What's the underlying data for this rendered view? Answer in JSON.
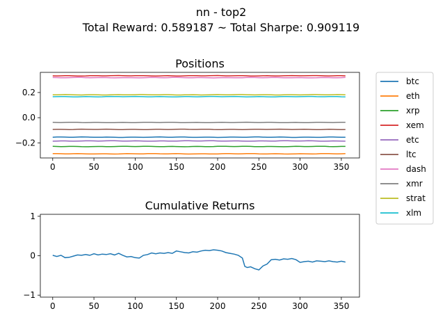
{
  "figure": {
    "title_line1": "nn - top2",
    "title_line2": "Total Reward: 0.589187 ~ Total Sharpe: 0.909119"
  },
  "chart_data": [
    {
      "type": "line",
      "title": "Positions",
      "xlabel": "",
      "ylabel": "",
      "xlim": [
        -15,
        372
      ],
      "ylim": [
        -0.32,
        0.36
      ],
      "xticks": [
        0,
        50,
        100,
        150,
        200,
        250,
        300,
        350
      ],
      "yticks": [
        -0.2,
        0.0,
        0.2
      ],
      "ytick_labels": [
        "−0.2",
        "0.0",
        "0.2"
      ],
      "x_range": [
        0,
        355
      ],
      "legend_position": "outside-right",
      "grid": false,
      "series": [
        {
          "name": "btc",
          "color": "#1f77b4",
          "value": -0.155
        },
        {
          "name": "eth",
          "color": "#ff7f0e",
          "value": -0.287
        },
        {
          "name": "xrp",
          "color": "#2ca02c",
          "value": -0.229
        },
        {
          "name": "xem",
          "color": "#d62728",
          "value": 0.333
        },
        {
          "name": "etc",
          "color": "#9467bd",
          "value": -0.185
        },
        {
          "name": "ltc",
          "color": "#8c564b",
          "value": -0.093
        },
        {
          "name": "dash",
          "color": "#e377c2",
          "value": 0.318
        },
        {
          "name": "xmr",
          "color": "#7f7f7f",
          "value": -0.038
        },
        {
          "name": "strat",
          "color": "#bcbd22",
          "value": 0.182
        },
        {
          "name": "xlm",
          "color": "#17becf",
          "value": 0.167
        }
      ]
    },
    {
      "type": "line",
      "title": "Cumulative Returns",
      "xlabel": "",
      "ylabel": "",
      "xlim": [
        -15,
        372
      ],
      "ylim": [
        -1.05,
        1.05
      ],
      "xticks": [
        0,
        50,
        100,
        150,
        200,
        250,
        300,
        350
      ],
      "yticks": [
        -1,
        0,
        1
      ],
      "ytick_labels": [
        "−1",
        "0",
        "1"
      ],
      "grid": false,
      "series": [
        {
          "color": "#1f77b4",
          "x": [
            0,
            5,
            10,
            15,
            20,
            25,
            30,
            35,
            40,
            45,
            50,
            55,
            60,
            65,
            70,
            75,
            80,
            85,
            90,
            95,
            100,
            105,
            110,
            115,
            120,
            125,
            130,
            135,
            140,
            145,
            150,
            155,
            160,
            165,
            170,
            175,
            180,
            185,
            190,
            195,
            200,
            205,
            210,
            215,
            220,
            225,
            230,
            233,
            236,
            240,
            245,
            250,
            255,
            260,
            265,
            270,
            275,
            280,
            285,
            290,
            295,
            300,
            305,
            310,
            315,
            320,
            325,
            330,
            335,
            340,
            345,
            350,
            355
          ],
          "y": [
            0.01,
            -0.02,
            0.01,
            -0.05,
            -0.04,
            -0.01,
            0.02,
            0.01,
            0.03,
            0.01,
            0.05,
            0.02,
            0.04,
            0.03,
            0.05,
            0.02,
            0.06,
            0.01,
            -0.03,
            -0.02,
            -0.05,
            -0.06,
            0.01,
            0.03,
            0.07,
            0.05,
            0.07,
            0.06,
            0.08,
            0.06,
            0.12,
            0.1,
            0.08,
            0.07,
            0.1,
            0.09,
            0.12,
            0.14,
            0.13,
            0.15,
            0.14,
            0.12,
            0.08,
            0.06,
            0.04,
            0.01,
            -0.06,
            -0.27,
            -0.3,
            -0.28,
            -0.33,
            -0.36,
            -0.26,
            -0.21,
            -0.1,
            -0.09,
            -0.11,
            -0.08,
            -0.09,
            -0.07,
            -0.1,
            -0.17,
            -0.15,
            -0.14,
            -0.16,
            -0.13,
            -0.14,
            -0.15,
            -0.13,
            -0.15,
            -0.16,
            -0.14,
            -0.16
          ]
        }
      ]
    }
  ]
}
